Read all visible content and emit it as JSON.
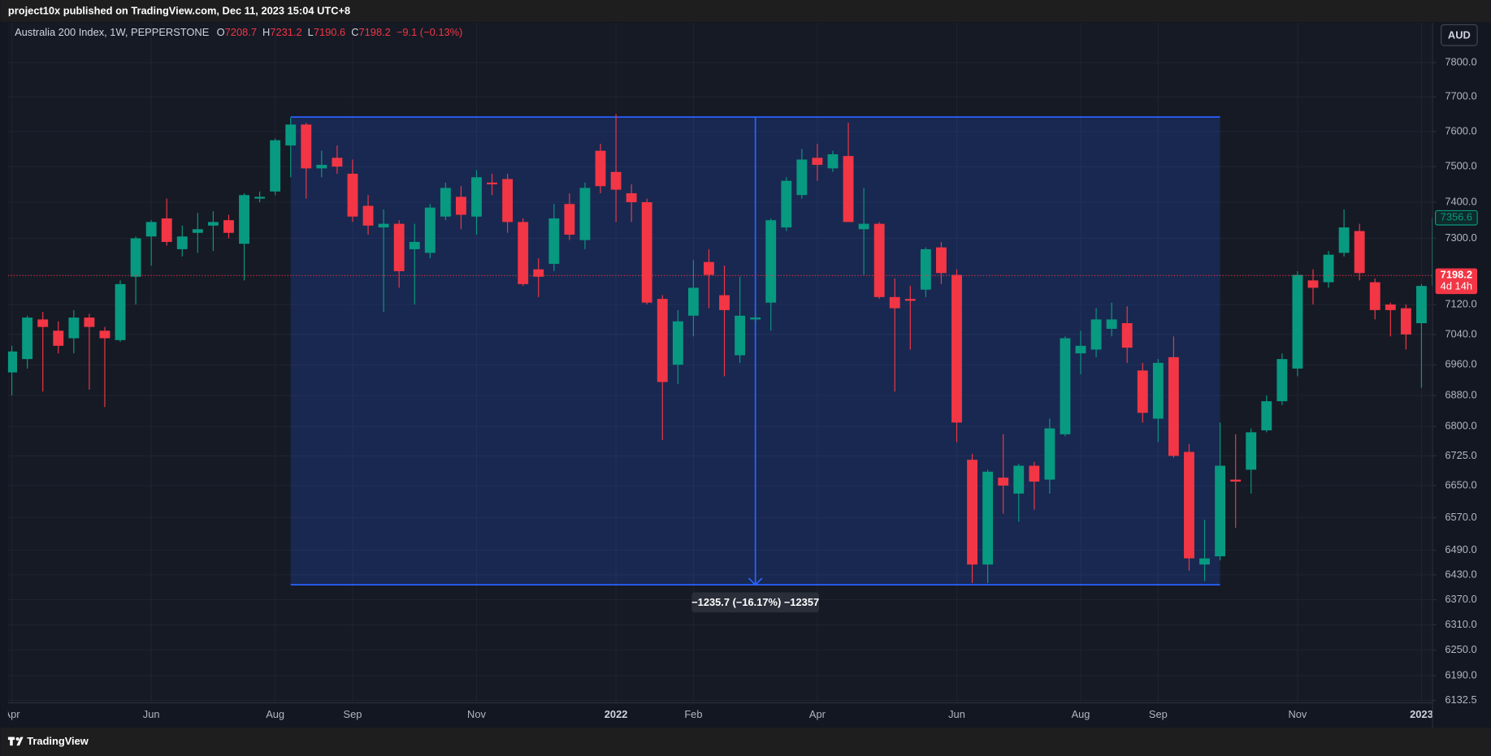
{
  "header": {
    "publisher": "project10x published on TradingView.com, Dec 11, 2023 15:04 UTC+8"
  },
  "legend": {
    "symbol": "Australia 200 Index, 1W, PEPPERSTONE",
    "ohlc": [
      {
        "key": "O",
        "value": 7208.7
      },
      {
        "key": "H",
        "value": 7231.2
      },
      {
        "key": "L",
        "value": 7190.6
      },
      {
        "key": "C",
        "value": 7198.2
      }
    ],
    "change": "−9.1 (−0.13%)"
  },
  "currency": "AUD",
  "footer": {
    "brand": "TradingView"
  },
  "chart_data": {
    "type": "candlestick",
    "log": true,
    "grid": true,
    "up_color": "#089981",
    "down_color": "#f23645",
    "categories": [
      "Apr",
      null,
      null,
      null,
      null,
      null,
      null,
      null,
      null,
      "Jun",
      null,
      null,
      null,
      null,
      null,
      null,
      null,
      "Aug",
      null,
      null,
      null,
      null,
      "Sep",
      null,
      null,
      null,
      null,
      null,
      null,
      null,
      "Nov",
      null,
      null,
      null,
      null,
      null,
      null,
      null,
      null,
      "2022",
      null,
      null,
      null,
      null,
      "Feb",
      null,
      null,
      null,
      null,
      null,
      null,
      null,
      "Apr",
      null,
      null,
      null,
      null,
      null,
      null,
      null,
      null,
      "Jun",
      null,
      null,
      null,
      null,
      null,
      null,
      null,
      "Aug",
      null,
      null,
      null,
      null,
      "Sep",
      null,
      null,
      null,
      null,
      null,
      null,
      null,
      null,
      "Nov",
      null,
      null,
      null,
      null,
      null,
      null,
      null,
      "2023",
      null
    ],
    "open": [
      6940,
      6975,
      7080,
      7050,
      7030,
      7085,
      7050,
      7025,
      7195,
      7305,
      7355,
      7270,
      7315,
      7335,
      7350,
      7285,
      7410,
      7430,
      7560,
      7620,
      7495,
      7525,
      7480,
      7390,
      7330,
      7340,
      7270,
      7260,
      7360,
      7415,
      7360,
      7455,
      7465,
      7345,
      7215,
      7230,
      7395,
      7295,
      7545,
      7485,
      7425,
      7400,
      7135,
      6960,
      7090,
      7235,
      7145,
      6985,
      7080,
      7125,
      7330,
      7420,
      7525,
      7495,
      7530,
      7325,
      7340,
      7140,
      7135,
      7160,
      7275,
      7200,
      6715,
      6455,
      6670,
      6630,
      6700,
      6665,
      6780,
      6990,
      7000,
      7055,
      7070,
      6945,
      6820,
      6980,
      6735,
      6455,
      6475,
      6665,
      6690,
      6790,
      6865,
      6950,
      7185,
      7180,
      7260,
      7320,
      7180,
      7120,
      7110,
      7070,
      7170
    ],
    "high": [
      7010,
      7090,
      7100,
      7075,
      7105,
      7095,
      7060,
      7185,
      7305,
      7350,
      7410,
      7335,
      7370,
      7375,
      7365,
      7425,
      7430,
      7580,
      7640,
      7625,
      7545,
      7560,
      7520,
      7420,
      7380,
      7350,
      7340,
      7395,
      7455,
      7445,
      7490,
      7480,
      7480,
      7355,
      7245,
      7395,
      7425,
      7455,
      7565,
      7650,
      7450,
      7410,
      7145,
      7105,
      7240,
      7270,
      7225,
      7195,
      7095,
      7355,
      7470,
      7550,
      7565,
      7545,
      7625,
      7440,
      7345,
      7190,
      7170,
      7275,
      7290,
      7215,
      6730,
      6690,
      6780,
      6705,
      6710,
      6820,
      7035,
      7050,
      7110,
      7125,
      7115,
      6965,
      6975,
      7035,
      6755,
      6565,
      6810,
      6780,
      6795,
      6880,
      6990,
      7210,
      7215,
      7265,
      7380,
      7340,
      7190,
      7125,
      7120,
      7175,
      7360
    ],
    "low": [
      6880,
      6950,
      6890,
      6990,
      6990,
      6895,
      6850,
      7020,
      7120,
      7225,
      7280,
      7250,
      7260,
      7265,
      7300,
      7185,
      7400,
      7420,
      7470,
      7410,
      7470,
      7480,
      7345,
      7310,
      7100,
      7165,
      7120,
      7245,
      7350,
      7325,
      7310,
      7420,
      7315,
      7170,
      7140,
      7210,
      7295,
      7270,
      7425,
      7345,
      7345,
      7120,
      6765,
      6910,
      7035,
      7110,
      6930,
      6965,
      7070,
      7050,
      7320,
      7410,
      7460,
      7485,
      7345,
      7200,
      7135,
      6890,
      7000,
      7140,
      7175,
      6760,
      6410,
      6410,
      6580,
      6560,
      6590,
      6630,
      6775,
      6935,
      6980,
      7035,
      6965,
      6810,
      6760,
      6720,
      6440,
      6415,
      6465,
      6545,
      6630,
      6785,
      6855,
      6930,
      7120,
      7165,
      7250,
      7185,
      7080,
      7035,
      7000,
      6900,
      7160
    ],
    "close": [
      6995,
      7085,
      7060,
      7010,
      7085,
      7060,
      7030,
      7175,
      7300,
      7345,
      7290,
      7305,
      7325,
      7345,
      7315,
      7420,
      7415,
      7575,
      7620,
      7495,
      7505,
      7500,
      7360,
      7335,
      7340,
      7210,
      7290,
      7385,
      7440,
      7365,
      7470,
      7450,
      7345,
      7175,
      7195,
      7355,
      7310,
      7440,
      7445,
      7435,
      7400,
      7125,
      6915,
      7075,
      7165,
      7200,
      7105,
      7090,
      7085,
      7350,
      7460,
      7520,
      7505,
      7535,
      7345,
      7340,
      7140,
      7110,
      7130,
      7270,
      7205,
      6810,
      6455,
      6685,
      6650,
      6700,
      6660,
      6795,
      7030,
      7010,
      7080,
      7080,
      7005,
      6835,
      6965,
      6725,
      6470,
      6470,
      6700,
      6660,
      6785,
      6865,
      6975,
      7200,
      7165,
      7255,
      7330,
      7205,
      7105,
      7105,
      7040,
      7170,
      7356.6
    ],
    "ylim": [
      6127,
      7918
    ],
    "yticks": [
      {
        "value": 7800,
        "label": "7800.0"
      },
      {
        "value": 7700,
        "label": "7700.0"
      },
      {
        "value": 7600,
        "label": "7600.0"
      },
      {
        "value": 7500,
        "label": "7500.0"
      },
      {
        "value": 7400,
        "label": "7400.0"
      },
      {
        "value": 7300,
        "label": "7300.0"
      },
      {
        "value": 7120,
        "label": "7120.0"
      },
      {
        "value": 7040,
        "label": "7040.0"
      },
      {
        "value": 6960,
        "label": "6960.0"
      },
      {
        "value": 6880,
        "label": "6880.0"
      },
      {
        "value": 6800,
        "label": "6800.0"
      },
      {
        "value": 6725,
        "label": "6725.0"
      },
      {
        "value": 6650,
        "label": "6650.0"
      },
      {
        "value": 6570,
        "label": "6570.0"
      },
      {
        "value": 6490,
        "label": "6490.0"
      },
      {
        "value": 6430,
        "label": "6430.0"
      },
      {
        "value": 6370,
        "label": "6370.0"
      },
      {
        "value": 6310,
        "label": "6310.0"
      },
      {
        "value": 6250,
        "label": "6250.0"
      },
      {
        "value": 6190,
        "label": "6190.0"
      },
      6132.5
    ],
    "last_price": {
      "value": 7198.2,
      "countdown": "4d 14h"
    },
    "measure": {
      "start": 18,
      "end": 78,
      "top": 7641.5,
      "bottom": 6405.8,
      "label": "−1235.7 (−16.17%) −12357"
    }
  }
}
